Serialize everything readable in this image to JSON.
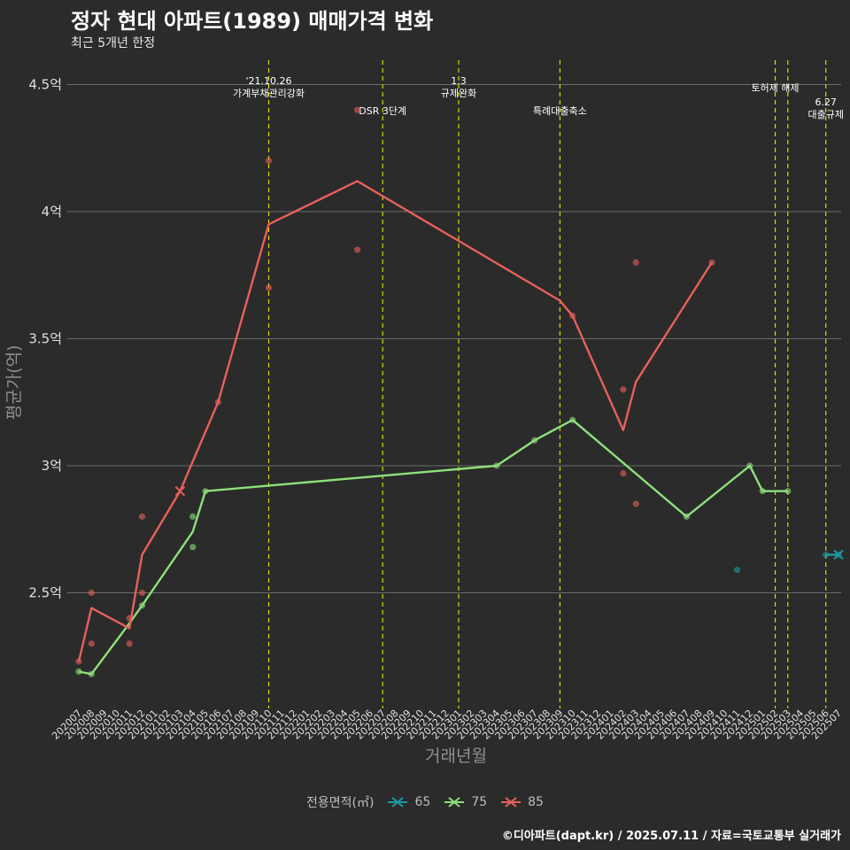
{
  "title": "정자 현대 아파트(1989) 매매가격 변화",
  "subtitle": "최근 5개년 한정",
  "caption": "©디아파트(dapt.kr) / 2025.07.11 / 자료=국토교통부 실거래가",
  "legend": {
    "title": "전용면적(㎡)",
    "items": [
      {
        "label": "65",
        "color": "#1f9aa0"
      },
      {
        "label": "75",
        "color": "#8ee07a"
      },
      {
        "label": "85",
        "color": "#e8605c"
      }
    ]
  },
  "chart_data": {
    "type": "line",
    "xlabel": "거래년월",
    "ylabel": "평균가(억)",
    "ylim": [
      2.1,
      4.6
    ],
    "yticks": [
      2.5,
      3,
      3.5,
      4,
      4.5
    ],
    "ytick_labels": [
      "2.5억",
      "3억",
      "3.5억",
      "4억",
      "4.5억"
    ],
    "categories": [
      "202007",
      "202008",
      "202009",
      "202010",
      "202011",
      "202012",
      "202101",
      "202102",
      "202103",
      "202104",
      "202105",
      "202106",
      "202107",
      "202108",
      "202109",
      "202110",
      "202111",
      "202112",
      "202201",
      "202202",
      "202203",
      "202204",
      "202205",
      "202206",
      "202207",
      "202208",
      "202209",
      "202210",
      "202211",
      "202212",
      "202301",
      "202302",
      "202303",
      "202304",
      "202305",
      "202306",
      "202307",
      "202308",
      "202309",
      "202310",
      "202311",
      "202312",
      "202401",
      "202402",
      "202403",
      "202404",
      "202405",
      "202406",
      "202407",
      "202408",
      "202409",
      "202410",
      "202411",
      "202412",
      "202501",
      "202502",
      "202503",
      "202504",
      "202505",
      "202506",
      "202507"
    ],
    "series": [
      {
        "name": "65",
        "color": "#1f9aa0",
        "line": [
          {
            "x": "202506",
            "y": 2.65
          },
          {
            "x": "202507",
            "y": 2.65
          }
        ],
        "points": [
          {
            "x": "202411",
            "y": 2.59
          },
          {
            "x": "202506",
            "y": 2.65
          },
          {
            "x": "202507",
            "y": 2.65
          }
        ],
        "crosses": [
          {
            "x": "202507",
            "y": 2.65
          }
        ]
      },
      {
        "name": "75",
        "color": "#8ee07a",
        "line": [
          {
            "x": "202007",
            "y": 2.19
          },
          {
            "x": "202008",
            "y": 2.18
          },
          {
            "x": "202011",
            "y": 2.38
          },
          {
            "x": "202012",
            "y": 2.45
          },
          {
            "x": "202104",
            "y": 2.74
          },
          {
            "x": "202105",
            "y": 2.9
          },
          {
            "x": "202304",
            "y": 3.0
          },
          {
            "x": "202307",
            "y": 3.1
          },
          {
            "x": "202310",
            "y": 3.18
          },
          {
            "x": "202407",
            "y": 2.8
          },
          {
            "x": "202412",
            "y": 3.0
          },
          {
            "x": "202501",
            "y": 2.9
          },
          {
            "x": "202503",
            "y": 2.9
          }
        ],
        "points": [
          {
            "x": "202007",
            "y": 2.19
          },
          {
            "x": "202008",
            "y": 2.18
          },
          {
            "x": "202012",
            "y": 2.45
          },
          {
            "x": "202104",
            "y": 2.8
          },
          {
            "x": "202104",
            "y": 2.68
          },
          {
            "x": "202105",
            "y": 2.9
          },
          {
            "x": "202304",
            "y": 3.0
          },
          {
            "x": "202307",
            "y": 3.1
          },
          {
            "x": "202310",
            "y": 3.18
          },
          {
            "x": "202407",
            "y": 2.8
          },
          {
            "x": "202412",
            "y": 3.0
          },
          {
            "x": "202501",
            "y": 2.9
          },
          {
            "x": "202503",
            "y": 2.9
          }
        ],
        "crosses": []
      },
      {
        "name": "85",
        "color": "#e8605c",
        "line": [
          {
            "x": "202007",
            "y": 2.23
          },
          {
            "x": "202008",
            "y": 2.44
          },
          {
            "x": "202011",
            "y": 2.36
          },
          {
            "x": "202012",
            "y": 2.65
          },
          {
            "x": "202103",
            "y": 2.9
          },
          {
            "x": "202106",
            "y": 3.25
          },
          {
            "x": "202110",
            "y": 3.95
          },
          {
            "x": "202205",
            "y": 4.12
          },
          {
            "x": "202309",
            "y": 3.65
          },
          {
            "x": "202310",
            "y": 3.59
          },
          {
            "x": "202402",
            "y": 3.14
          },
          {
            "x": "202403",
            "y": 3.33
          },
          {
            "x": "202409",
            "y": 3.8
          }
        ],
        "points": [
          {
            "x": "202007",
            "y": 2.23
          },
          {
            "x": "202008",
            "y": 2.5
          },
          {
            "x": "202008",
            "y": 2.3
          },
          {
            "x": "202011",
            "y": 2.4
          },
          {
            "x": "202011",
            "y": 2.3
          },
          {
            "x": "202012",
            "y": 2.8
          },
          {
            "x": "202012",
            "y": 2.5
          },
          {
            "x": "202106",
            "y": 3.25
          },
          {
            "x": "202110",
            "y": 4.2
          },
          {
            "x": "202110",
            "y": 3.7
          },
          {
            "x": "202205",
            "y": 4.4
          },
          {
            "x": "202205",
            "y": 3.85
          },
          {
            "x": "202310",
            "y": 3.59
          },
          {
            "x": "202402",
            "y": 3.3
          },
          {
            "x": "202402",
            "y": 2.97
          },
          {
            "x": "202403",
            "y": 3.8
          },
          {
            "x": "202403",
            "y": 2.85
          },
          {
            "x": "202409",
            "y": 3.8
          }
        ],
        "crosses": [
          {
            "x": "202103",
            "y": 2.9
          }
        ]
      }
    ],
    "events": [
      {
        "x": "202110",
        "label": "'21.10.26\n가계부채관리강화"
      },
      {
        "x": "202207",
        "label": "DSR 3단계"
      },
      {
        "x": "202301",
        "label": "1.3\n규제완화"
      },
      {
        "x": "202309",
        "label": "특례대출축소"
      },
      {
        "x": "202502",
        "label": "토허제 해제"
      },
      {
        "x": "202503",
        "label": ""
      },
      {
        "x": "202506",
        "label": "6.27\n대출규제"
      }
    ]
  }
}
